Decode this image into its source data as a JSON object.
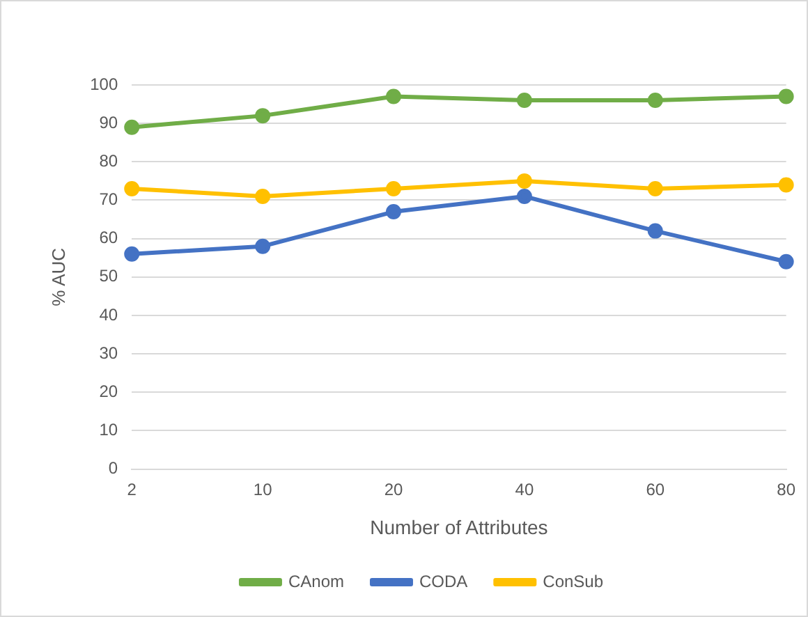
{
  "chart_data": {
    "type": "line",
    "xlabel": "Number of Attributes",
    "ylabel": "% AUC",
    "categories": [
      "2",
      "10",
      "20",
      "40",
      "60",
      "80"
    ],
    "series": [
      {
        "name": "CAnom",
        "color": "#70ad47",
        "values": [
          89,
          92,
          97,
          96,
          96,
          97
        ]
      },
      {
        "name": "CODA",
        "color": "#4472c4",
        "values": [
          56,
          58,
          67,
          71,
          62,
          54
        ]
      },
      {
        "name": "ConSub",
        "color": "#ffc000",
        "values": [
          73,
          71,
          73,
          75,
          73,
          74
        ]
      }
    ],
    "ylim": [
      0,
      100
    ],
    "yticks": [
      0,
      10,
      20,
      30,
      40,
      50,
      60,
      70,
      80,
      90,
      100
    ],
    "grid": "y",
    "legend": "bottom",
    "marker": "circle",
    "line_style": "solid"
  }
}
